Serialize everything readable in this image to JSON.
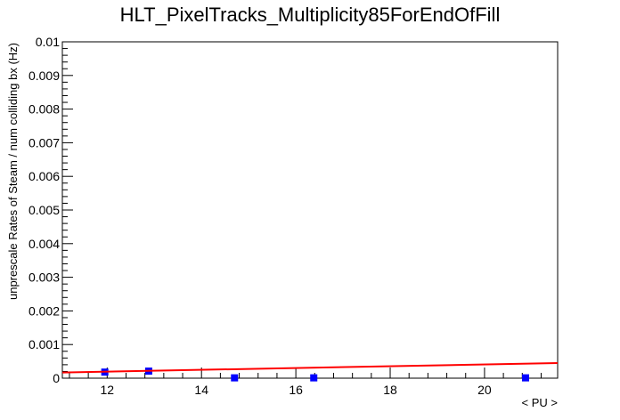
{
  "chart_data": {
    "type": "scatter",
    "title": "HLT_PixelTracks_Multiplicity85ForEndOfFill",
    "xlabel": "< PU >",
    "ylabel": "unprescale Rates of Steam / num colliding bx (Hz)",
    "xlim": [
      11.05,
      21.55
    ],
    "ylim": [
      0,
      0.01
    ],
    "x_ticks": [
      12,
      14,
      16,
      18,
      20
    ],
    "x_tick_labels": [
      "12",
      "14",
      "16",
      "18",
      "20"
    ],
    "y_ticks": [
      0,
      0.001,
      0.002,
      0.003,
      0.004,
      0.005,
      0.006,
      0.007,
      0.008,
      0.009,
      0.01
    ],
    "y_tick_labels": [
      "0",
      "0.001",
      "0.002",
      "0.003",
      "0.004",
      "0.005",
      "0.006",
      "0.007",
      "0.008",
      "0.009",
      "0.01"
    ],
    "grid": false,
    "series": [
      {
        "kind": "points",
        "color": "#0000ff",
        "x": [
          11.95,
          12.88,
          14.7,
          16.38,
          20.87
        ],
        "y": [
          0.00018,
          0.00021,
          1e-05,
          1e-05,
          1e-05
        ]
      },
      {
        "kind": "fit-line",
        "color": "#ff0000",
        "x": [
          11.05,
          21.55
        ],
        "y": [
          0.00017,
          0.00045
        ]
      }
    ]
  }
}
